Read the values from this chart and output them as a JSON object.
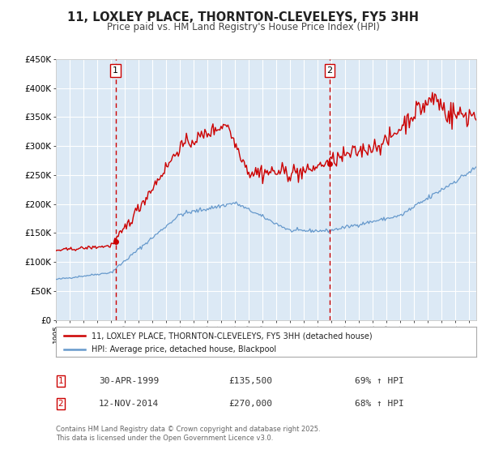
{
  "title": "11, LOXLEY PLACE, THORNTON-CLEVELEYS, FY5 3HH",
  "subtitle": "Price paid vs. HM Land Registry's House Price Index (HPI)",
  "legend_label_red": "11, LOXLEY PLACE, THORNTON-CLEVELEYS, FY5 3HH (detached house)",
  "legend_label_blue": "HPI: Average price, detached house, Blackpool",
  "marker1_date": "30-APR-1999",
  "marker1_price": 135500,
  "marker1_hpi": "69% ↑ HPI",
  "marker1_year": 1999.33,
  "marker2_date": "12-NOV-2014",
  "marker2_price": 270000,
  "marker2_hpi": "68% ↑ HPI",
  "marker2_year": 2014.87,
  "footnote": "Contains HM Land Registry data © Crown copyright and database right 2025.\nThis data is licensed under the Open Government Licence v3.0.",
  "ylim": [
    0,
    450000
  ],
  "yticks": [
    0,
    50000,
    100000,
    150000,
    200000,
    250000,
    300000,
    350000,
    400000,
    450000
  ],
  "xlim_start": 1995,
  "xlim_end": 2025.5,
  "background_color": "#dce9f5",
  "red_color": "#cc0000",
  "blue_color": "#6699cc",
  "grid_color": "#ffffff",
  "shade_start": 1999.33,
  "shade_end": 2014.87
}
